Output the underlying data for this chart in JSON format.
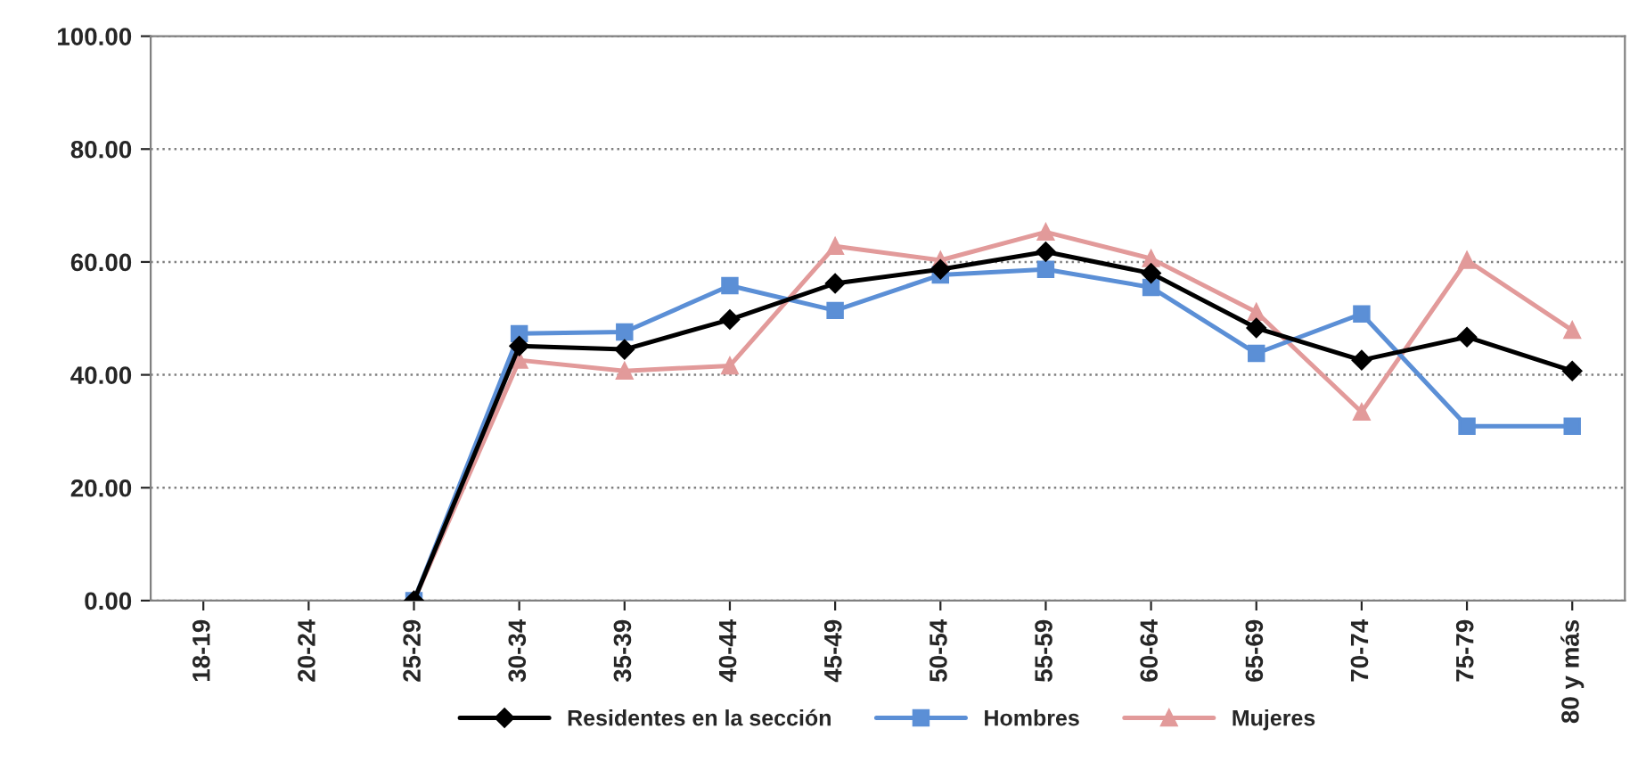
{
  "chart_data": {
    "type": "line",
    "categories": [
      "18-19",
      "20-24",
      "25-29",
      "30-34",
      "35-39",
      "40-44",
      "45-49",
      "50-54",
      "55-59",
      "60-64",
      "65-69",
      "70-74",
      "75-79",
      "80 y más"
    ],
    "series": [
      {
        "name": "Residentes en la sección",
        "color": "#000000",
        "marker": "diamond",
        "values": [
          null,
          null,
          0,
          45.1,
          44.5,
          49.8,
          56.2,
          58.7,
          61.8,
          58.0,
          48.3,
          42.6,
          46.7,
          40.7
        ]
      },
      {
        "name": "Hombres",
        "color": "#5b8fd6",
        "marker": "square",
        "values": [
          null,
          null,
          0,
          47.3,
          47.6,
          55.8,
          51.4,
          57.7,
          58.7,
          55.5,
          43.8,
          50.8,
          30.9,
          30.9
        ]
      },
      {
        "name": "Mujeres",
        "color": "#e29a9a",
        "marker": "triangle",
        "values": [
          null,
          null,
          0,
          42.6,
          40.7,
          41.6,
          62.8,
          60.3,
          65.3,
          60.6,
          51.1,
          33.4,
          60.3,
          47.9
        ]
      }
    ],
    "ylim": [
      0,
      100
    ],
    "yticks": [
      {
        "value": 0,
        "label": "0.00"
      },
      {
        "value": 20,
        "label": "20.00"
      },
      {
        "value": 40,
        "label": "40.00"
      },
      {
        "value": 60,
        "label": "60.00"
      },
      {
        "value": 80,
        "label": "80.00"
      },
      {
        "value": 100,
        "label": "100.00"
      }
    ],
    "grid": "y",
    "legend": "bottom",
    "line_style": "solid"
  }
}
